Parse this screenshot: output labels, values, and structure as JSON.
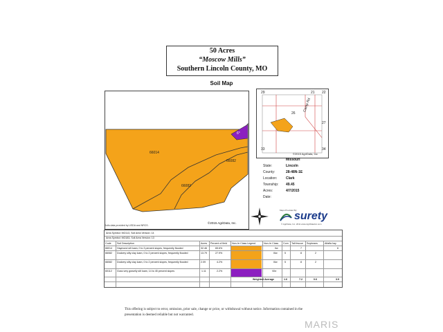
{
  "title": {
    "line1": "50 Acres",
    "line2": "“Moscow Mills”",
    "line3": "Southern Lincoln County, MO"
  },
  "soil_heading": "Soil Map",
  "map_labels": {
    "a": "66014",
    "b": "66082",
    "c": "66082",
    "d": "6°"
  },
  "inset_labels": {
    "n29": "29",
    "n21": "21",
    "n22": "22",
    "n28": "28",
    "n27": "27",
    "n26": "26",
    "n33": "33",
    "n34": "34",
    "road": "Camp Rd",
    "copyright": "©2015 AgriData, Inc"
  },
  "info": [
    {
      "k": "State:",
      "v": "Missouri"
    },
    {
      "k": "County:",
      "v": "Lincoln"
    },
    {
      "k": "Location:",
      "v": "28-48N-1E"
    },
    {
      "k": "Township:",
      "v": "Clark"
    },
    {
      "k": "Acres:",
      "v": "49.45"
    },
    {
      "k": "Date:",
      "v": "4/7/2015"
    }
  ],
  "copyright": "©2015 AgriData, Inc.",
  "footer_note": "Soils data provided by USDA and NRCS.",
  "surety": {
    "top": "Maps Provided By:",
    "brand": "surety",
    "sub": "© AgriData, Inc. 2011    www.AgriDataInc.com"
  },
  "table": {
    "area1": "Area Symbol: MO113, Soil Area Version: 14",
    "area2": "Area Symbol: MO183, Soil Area Version: 13",
    "headers": [
      "Code",
      "Soil Description",
      "Acres",
      "Percent of field",
      "Non-Irr Class Legend",
      "Non-Irr Class",
      "Corn",
      "Tall fescue",
      "Soybeans",
      "Alfalfa hay"
    ],
    "rows": [
      {
        "code": "66014",
        "desc": "Haymond silt loam, 0 to 3 percent slopes, frequently flooded",
        "acres": "32.46",
        "pct": "65.6%",
        "cls": "IIw",
        "corn": "",
        "fescue": "7",
        "soy": "",
        "alf": "6",
        "swatch": "#f4a31a"
      },
      {
        "code": "66082",
        "desc": "Dockery silty clay loam, 0 to 2 percent slopes, frequently flooded",
        "acres": "13.79",
        "pct": "27.9%",
        "cls": "IIIw",
        "corn": "5",
        "fescue": "8",
        "soy": "2",
        "alf": "",
        "swatch": "#f4a31a"
      },
      {
        "code": "66082",
        "desc": "Dockery silty clay loam, 0 to 2 percent slopes, frequently flooded",
        "acres": "2.09",
        "pct": "4.2%",
        "cls": "IIIw",
        "corn": "5",
        "fescue": "8",
        "soy": "2",
        "alf": "",
        "swatch": "#f4a31a"
      },
      {
        "code": "60112",
        "desc": "Goss very gravelly silt loam, 14 to 45 percent slopes",
        "acres": "1.11",
        "pct": "2.2%",
        "cls": "VIIe",
        "corn": "",
        "fescue": "",
        "soy": "",
        "alf": "",
        "swatch": "#8c1fc0"
      }
    ],
    "weighted_label": "Weighted Average",
    "weighted": {
      "corn": "1.6",
      "fescue": "7.2",
      "soy": "0.6",
      "alf": "3.9"
    }
  },
  "disclaimer": "This offering is subject to error, omission, prior sale, change or price, or withdrawal without notice. Information contained in the presentation is deemed reliable but not warranted.",
  "watermark": "MARIS",
  "colors": {
    "orange": "#f4a31a",
    "purple": "#8c1fc0"
  }
}
